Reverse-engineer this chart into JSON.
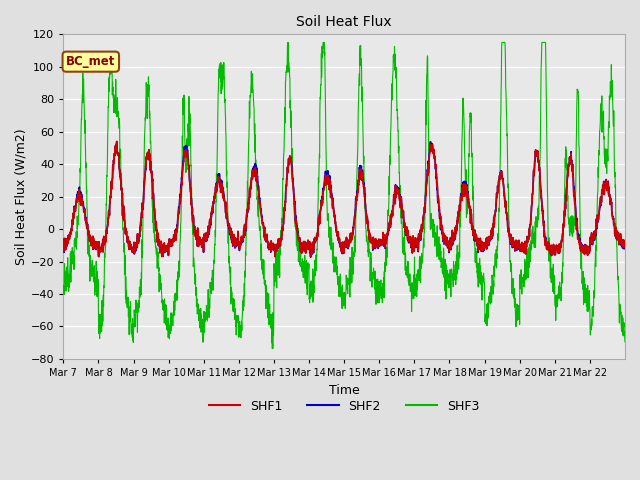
{
  "title": "Soil Heat Flux",
  "xlabel": "Time",
  "ylabel": "Soil Heat Flux (W/m2)",
  "ylim": [
    -80,
    120
  ],
  "xlim": [
    0,
    16
  ],
  "bg_color": "#e0e0e0",
  "plot_bg_color": "#e8e8e8",
  "grid_color": "#ffffff",
  "shf1_color": "#cc0000",
  "shf2_color": "#0000cc",
  "shf3_color": "#00bb00",
  "annotation_text": "BC_met",
  "annotation_bg": "#ffff99",
  "annotation_border": "#8b4513",
  "tick_labels": [
    "Mar 7",
    "Mar 8",
    "Mar 9",
    "Mar 10",
    "Mar 11",
    "Mar 12",
    "Mar 13",
    "Mar 14",
    "Mar 15",
    "Mar 16",
    "Mar 17",
    "Mar 18",
    "Mar 19",
    "Mar 20",
    "Mar 21",
    "Mar 22"
  ],
  "n_days": 16,
  "ppd": 144,
  "seed": 7
}
